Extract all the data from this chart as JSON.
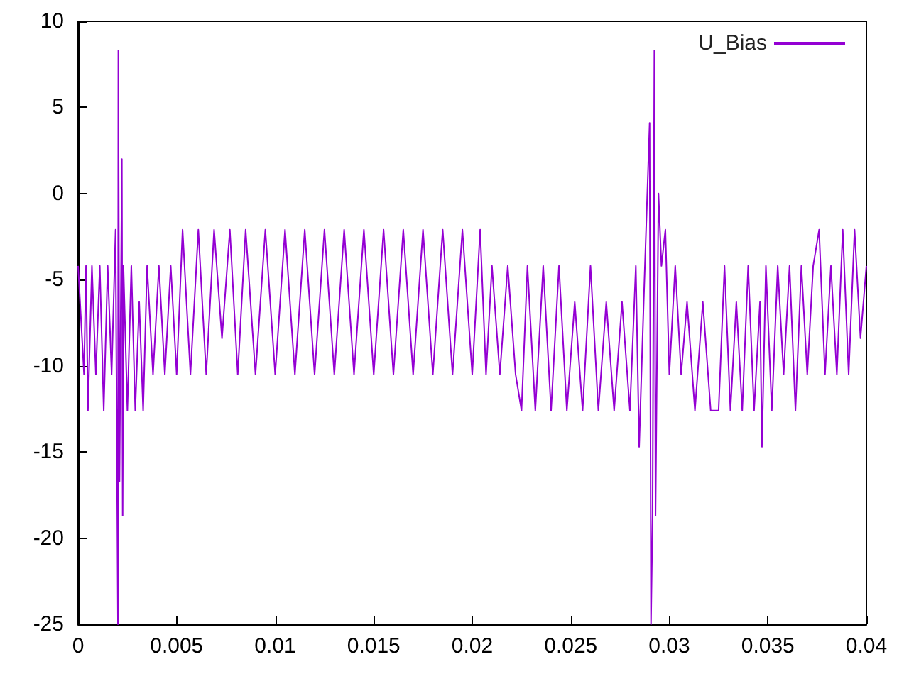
{
  "chart_data": {
    "type": "line",
    "legend": "top right",
    "grid": false,
    "marker": "none",
    "line_style": "solid",
    "xlim": [
      0,
      0.04
    ],
    "xticks": [
      0,
      0.005,
      0.01,
      0.015,
      0.02,
      0.025,
      0.03,
      0.035,
      0.04
    ],
    "ylim": [
      -25,
      10
    ],
    "yticks": [
      -25,
      -20,
      -15,
      -10,
      -5,
      0,
      5,
      10
    ],
    "x": [
      0,
      0.0003,
      0.0004,
      0.0005,
      0.0007,
      0.0009,
      0.0011,
      0.0013,
      0.0015,
      0.0017,
      0.0019,
      0.00202,
      0.00204,
      0.0021,
      0.00222,
      0.00226,
      0.0023,
      0.0025,
      0.0027,
      0.0029,
      0.0031,
      0.0033,
      0.0035,
      0.0038,
      0.0041,
      0.0044,
      0.0047,
      0.005,
      0.0053,
      0.0057,
      0.0061,
      0.0065,
      0.0069,
      0.0073,
      0.0077,
      0.0081,
      0.0085,
      0.009,
      0.0095,
      0.01,
      0.0105,
      0.011,
      0.0115,
      0.012,
      0.0125,
      0.013,
      0.0135,
      0.014,
      0.0145,
      0.015,
      0.0155,
      0.016,
      0.0165,
      0.017,
      0.0175,
      0.018,
      0.0185,
      0.019,
      0.0195,
      0.02,
      0.0204,
      0.0207,
      0.021,
      0.0214,
      0.0218,
      0.0222,
      0.0225,
      0.0228,
      0.0232,
      0.0236,
      0.024,
      0.0244,
      0.0248,
      0.0252,
      0.0256,
      0.026,
      0.0264,
      0.0268,
      0.0272,
      0.0276,
      0.028,
      0.0283,
      0.02847,
      0.0287,
      0.029,
      0.02907,
      0.02915,
      0.02924,
      0.0293,
      0.02945,
      0.0296,
      0.0298,
      0.03,
      0.0303,
      0.0306,
      0.0309,
      0.0313,
      0.0317,
      0.0321,
      0.0325,
      0.0328,
      0.0331,
      0.0334,
      0.0337,
      0.034,
      0.0343,
      0.0346,
      0.0347,
      0.0349,
      0.0352,
      0.0355,
      0.0358,
      0.0361,
      0.0364,
      0.0367,
      0.037,
      0.0373,
      0.0376,
      0.0379,
      0.0382,
      0.0385,
      0.0388,
      0.0391,
      0.0394,
      0.0397,
      0.04
    ],
    "series": [
      {
        "name": "U_Bias",
        "color": "#9400d3",
        "values": [
          -4.2,
          -10.5,
          -4.2,
          -12.6,
          -4.2,
          -10.5,
          -4.2,
          -12.6,
          -4.2,
          -10.5,
          -2.1,
          -25,
          8.3,
          -16.7,
          2,
          -18.7,
          -4.2,
          -12.6,
          -4.2,
          -12.6,
          -6.3,
          -12.6,
          -4.2,
          -10.5,
          -4.2,
          -10.5,
          -4.2,
          -10.5,
          -2.1,
          -10.5,
          -2.1,
          -10.5,
          -2.1,
          -8.4,
          -2.1,
          -10.5,
          -2.1,
          -10.5,
          -2.1,
          -10.5,
          -2.1,
          -10.5,
          -2.1,
          -10.5,
          -2.1,
          -10.5,
          -2.1,
          -10.5,
          -2.1,
          -10.5,
          -2.1,
          -10.5,
          -2.1,
          -10.5,
          -2.1,
          -10.5,
          -2.1,
          -10.5,
          -2.1,
          -10.5,
          -2.1,
          -10.5,
          -4.2,
          -10.5,
          -4.2,
          -10.5,
          -12.6,
          -4.2,
          -12.6,
          -4.2,
          -12.6,
          -4.2,
          -12.6,
          -6.3,
          -12.6,
          -4.2,
          -12.6,
          -6.3,
          -12.6,
          -6.3,
          -12.6,
          -4.2,
          -14.7,
          -6.3,
          4.1,
          -25,
          -18.7,
          8.3,
          -18.7,
          0,
          -4.2,
          -2.1,
          -10.5,
          -4.2,
          -10.5,
          -6.3,
          -12.6,
          -6.3,
          -12.6,
          -12.6,
          -4.2,
          -12.6,
          -6.3,
          -12.6,
          -4.2,
          -12.6,
          -6.3,
          -14.7,
          -4.2,
          -12.6,
          -4.2,
          -10.5,
          -4.2,
          -12.6,
          -4.2,
          -10.5,
          -4.2,
          -2.1,
          -10.5,
          -4.2,
          -10.5,
          -2.1,
          -10.5,
          -2.1,
          -8.4,
          -4.2
        ]
      }
    ]
  }
}
